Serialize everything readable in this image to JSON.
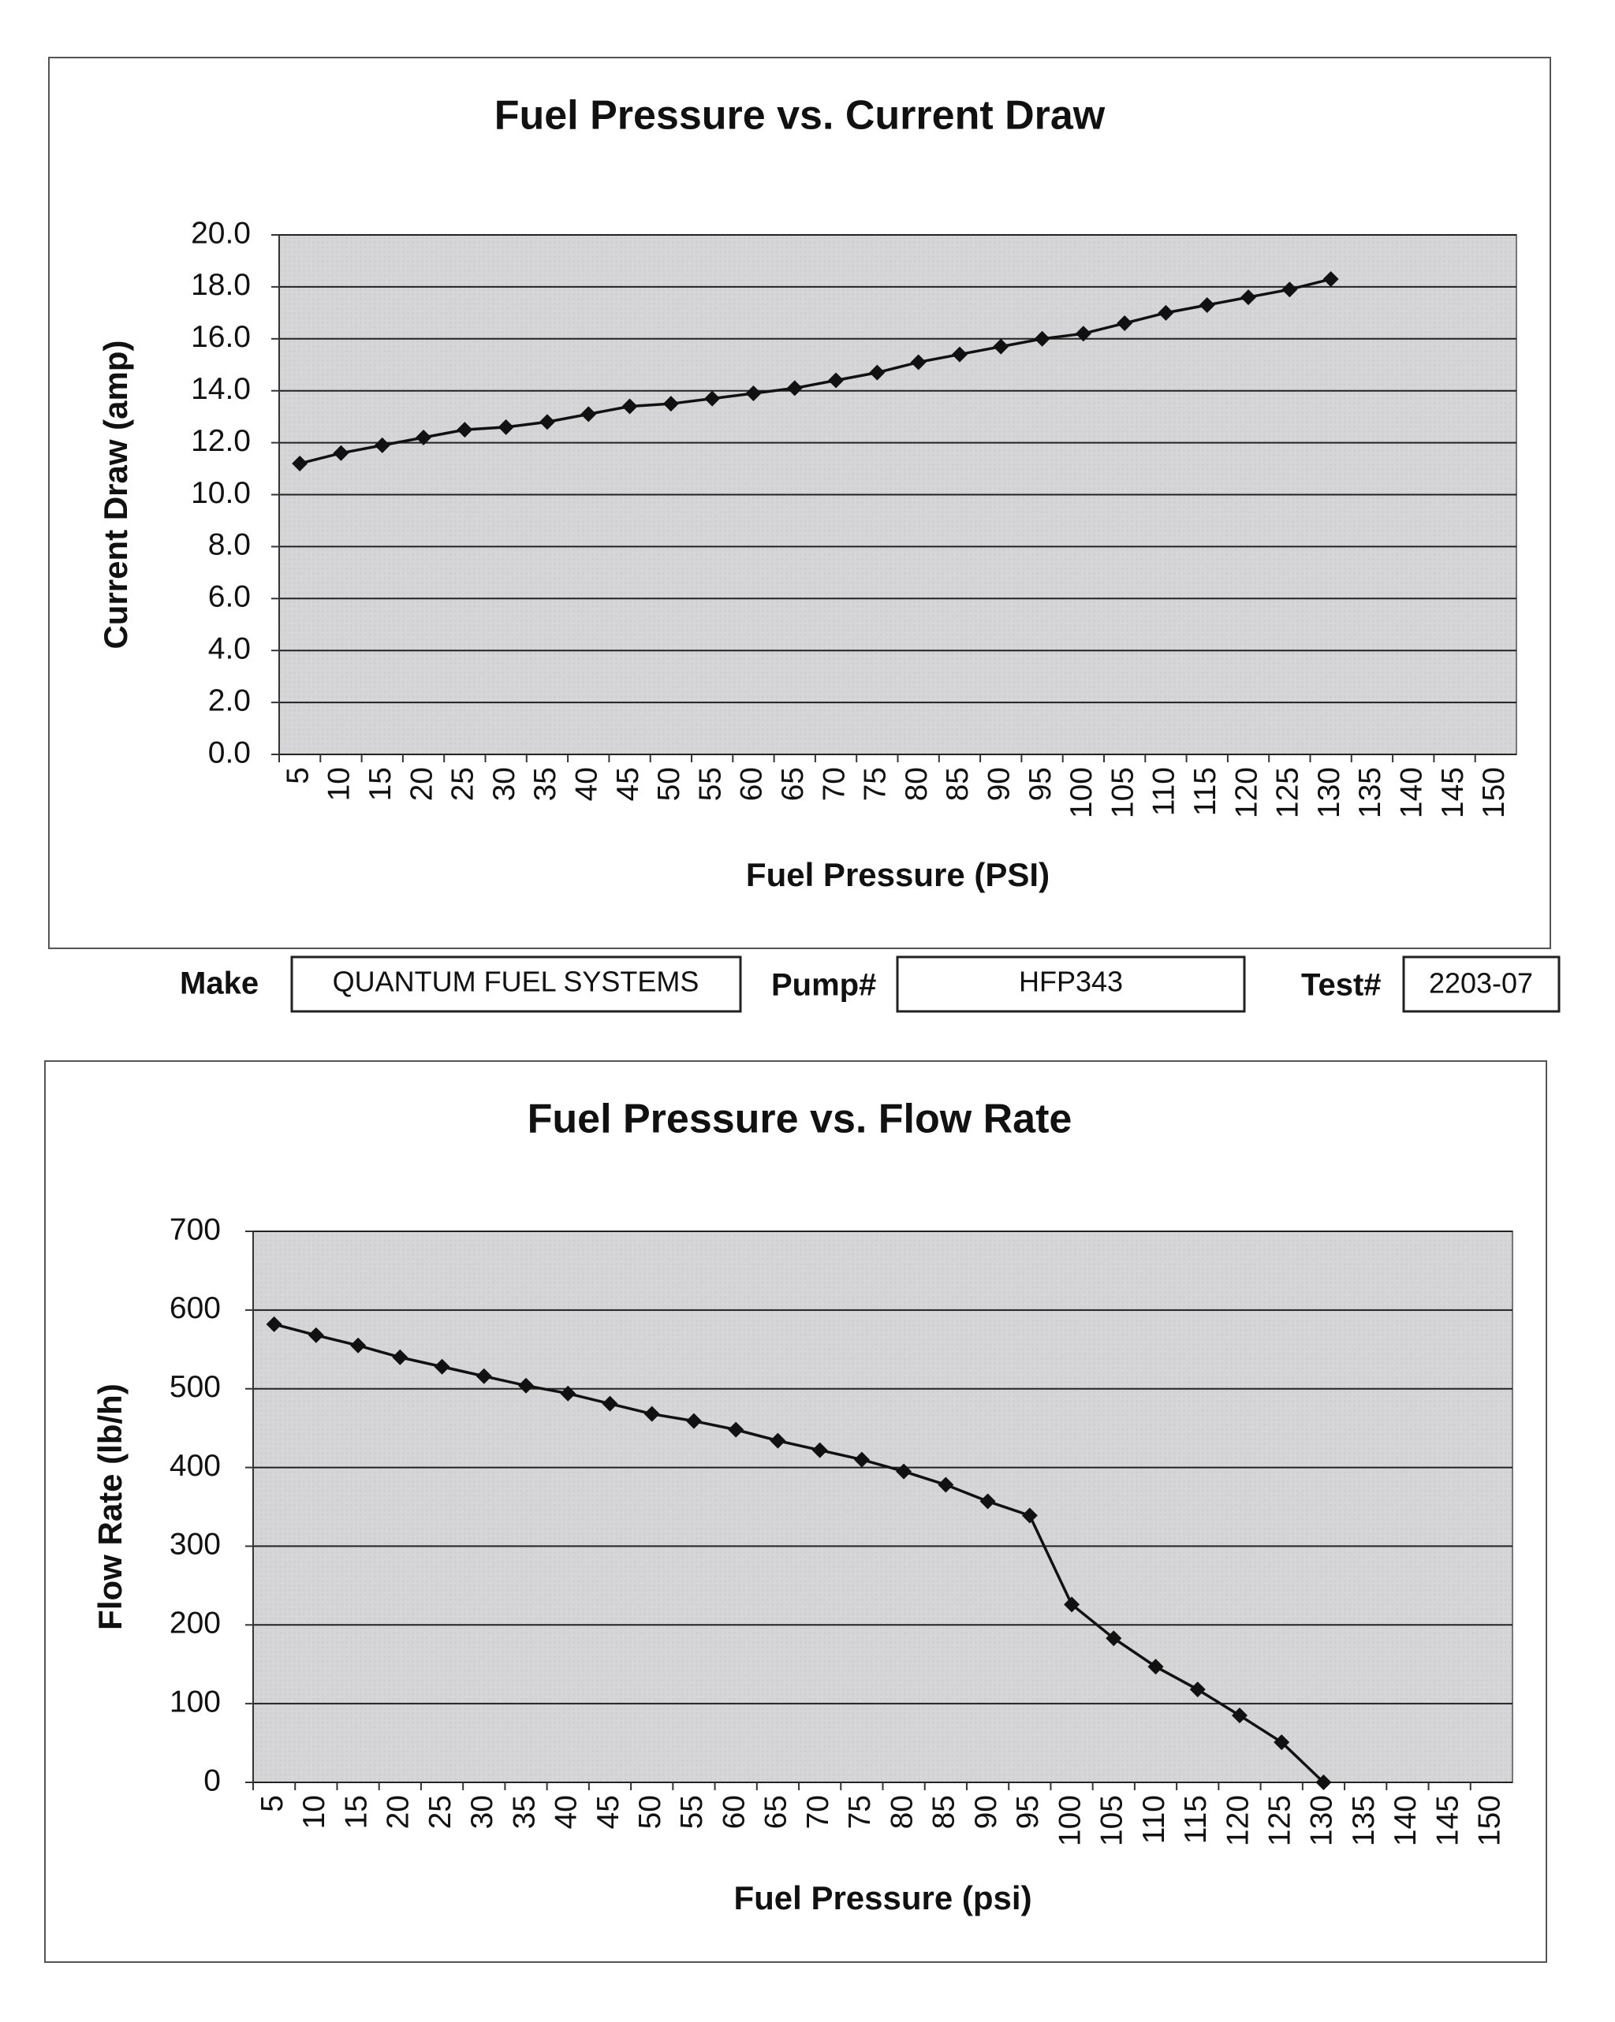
{
  "chart_data": [
    {
      "type": "line",
      "title": "Fuel Pressure vs. Current Draw",
      "x_label": "Fuel Pressure (PSI)",
      "y_label": "Current Draw (amp)",
      "categories": [
        "5",
        "10",
        "15",
        "20",
        "25",
        "30",
        "35",
        "40",
        "45",
        "50",
        "55",
        "60",
        "65",
        "70",
        "75",
        "80",
        "85",
        "90",
        "95",
        "100",
        "105",
        "110",
        "115",
        "120",
        "125",
        "130",
        "135",
        "140",
        "145",
        "150"
      ],
      "values": [
        11.2,
        11.6,
        11.9,
        12.2,
        12.5,
        12.6,
        12.8,
        13.1,
        13.4,
        13.5,
        13.7,
        13.9,
        14.1,
        14.4,
        14.7,
        15.1,
        15.4,
        15.7,
        16.0,
        16.2,
        16.6,
        17.0,
        17.3,
        17.6,
        17.9,
        18.3,
        null,
        null,
        null,
        null
      ],
      "color": "#111111",
      "ylim": [
        0,
        20
      ],
      "yticks": [
        {
          "value": 0,
          "label": "0.0"
        },
        {
          "value": 2,
          "label": "2.0"
        },
        {
          "value": 4,
          "label": "4.0"
        },
        {
          "value": 6,
          "label": "6.0"
        },
        {
          "value": 8,
          "label": "8.0"
        },
        {
          "value": 10,
          "label": "10.0"
        },
        {
          "value": 12,
          "label": "12.0"
        },
        {
          "value": 14,
          "label": "14.0"
        },
        {
          "value": 16,
          "label": "16.0"
        },
        {
          "value": 18,
          "label": "18.0"
        },
        {
          "value": 20,
          "label": "20.0"
        }
      ],
      "grid": true
    },
    {
      "type": "line",
      "title": "Fuel Pressure vs. Flow Rate",
      "x_label": "Fuel Pressure (psi)",
      "y_label": "Flow Rate (lb/h)",
      "categories": [
        "5",
        "10",
        "15",
        "20",
        "25",
        "30",
        "35",
        "40",
        "45",
        "50",
        "55",
        "60",
        "65",
        "70",
        "75",
        "80",
        "85",
        "90",
        "95",
        "100",
        "105",
        "110",
        "115",
        "120",
        "125",
        "130",
        "135",
        "140",
        "145",
        "150"
      ],
      "values": [
        582,
        568,
        555,
        540,
        528,
        516,
        504,
        494,
        481,
        468,
        459,
        448,
        434,
        422,
        410,
        395,
        378,
        357,
        339,
        226,
        183,
        147,
        118,
        85,
        51,
        0,
        null,
        null,
        null,
        null
      ],
      "color": "#111111",
      "ylim": [
        0,
        700
      ],
      "yticks": [
        0,
        100,
        200,
        300,
        400,
        500,
        600,
        700
      ],
      "grid": true
    }
  ],
  "form": {
    "make_label": "Make",
    "make": "QUANTUM FUEL SYSTEMS",
    "pump_label": "Pump#",
    "pump": "HFP343",
    "test_label": "Test#",
    "test": "2203-07"
  }
}
